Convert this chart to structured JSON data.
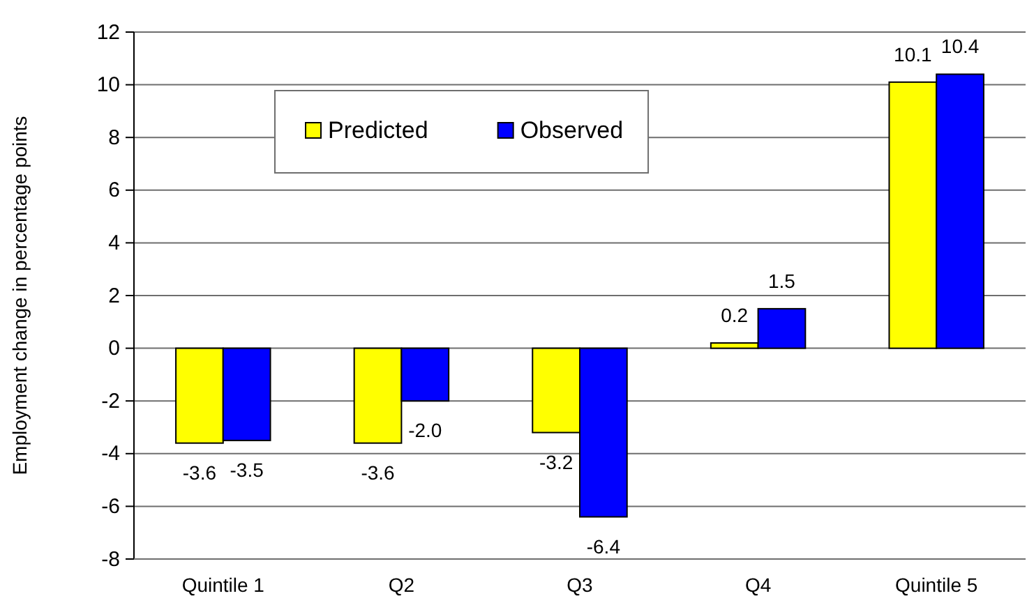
{
  "chart_data": {
    "type": "bar",
    "ylabel": "Employment change in percentage points",
    "categories": [
      "Quintile 1",
      "Q2",
      "Q3",
      "Q4",
      "Quintile 5"
    ],
    "series": [
      {
        "name": "Predicted",
        "color": "#ffff00",
        "values": [
          -3.6,
          -3.6,
          -3.2,
          0.2,
          10.1
        ],
        "value_labels": [
          "-3.6",
          "-3.6",
          "-3.2",
          "0.2",
          "10.1"
        ]
      },
      {
        "name": "Observed",
        "color": "#0000ff",
        "values": [
          -3.5,
          -2.0,
          -6.4,
          1.5,
          10.4
        ],
        "value_labels": [
          "-3.5",
          "-2.0",
          "-6.4",
          "1.5",
          "10.4"
        ]
      }
    ],
    "ylim": [
      -8,
      12
    ],
    "yticks": [
      -8,
      -6,
      -4,
      -2,
      0,
      2,
      4,
      6,
      8,
      10,
      12
    ],
    "grid": "y",
    "legend": "top left"
  }
}
